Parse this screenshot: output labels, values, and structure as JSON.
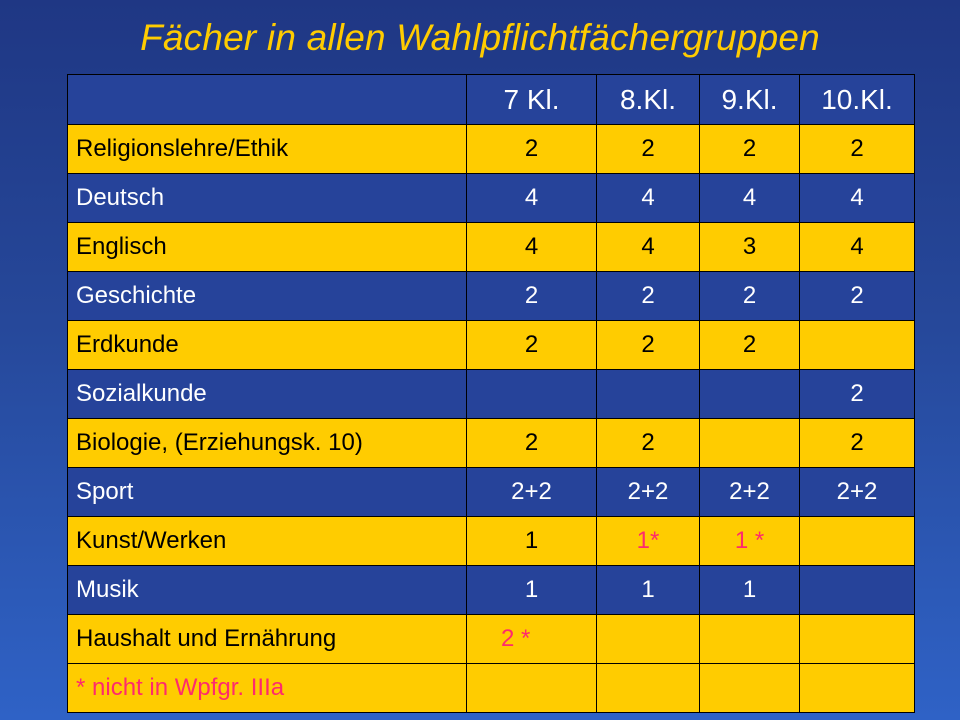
{
  "title": "Fächer in allen Wahlpflichtfächergruppen",
  "header": [
    "",
    "7 Kl.",
    "8.Kl.",
    "9.Kl.",
    "10.Kl."
  ],
  "rows": [
    {
      "subject": "Religionslehre/Ethik",
      "values": [
        "2",
        "2",
        "2",
        "2"
      ]
    },
    {
      "subject": "Deutsch",
      "values": [
        "4",
        "4",
        "4",
        "4"
      ]
    },
    {
      "subject": "Englisch",
      "values": [
        "4",
        "4",
        "3",
        "4"
      ]
    },
    {
      "subject": "Geschichte",
      "values": [
        "2",
        "2",
        "2",
        "2"
      ]
    },
    {
      "subject": "Erdkunde",
      "values": [
        "2",
        "2",
        "2",
        ""
      ]
    },
    {
      "subject": "Sozialkunde",
      "values": [
        "",
        "",
        "",
        "2"
      ]
    },
    {
      "subject": "Biologie, (Erziehungsk. 10)",
      "values": [
        "2",
        "2",
        "",
        "2"
      ]
    },
    {
      "subject": "Sport",
      "values": [
        "2+2",
        "2+2",
        "2+2",
        "2+2"
      ]
    },
    {
      "subject": "Kunst/Werken",
      "values": [
        "1",
        "1*",
        "1 *",
        ""
      ]
    },
    {
      "subject": "Musik",
      "values": [
        "1",
        "1",
        "1",
        ""
      ]
    },
    {
      "subject": "Haushalt und Ernährung",
      "values": [
        "2 *",
        "",
        "",
        ""
      ]
    },
    {
      "subject": "* nicht in Wpfgr. IIIa",
      "values": [
        "",
        "",
        "",
        ""
      ]
    }
  ],
  "colors": {
    "background": "#26439a",
    "gold": "#ffcc00",
    "red_note": "#ff2a6d"
  }
}
